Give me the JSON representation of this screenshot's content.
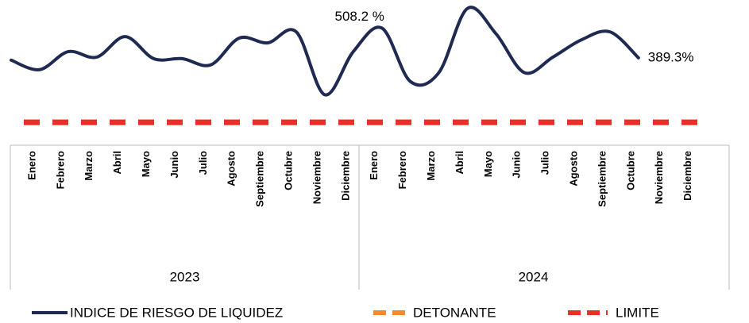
{
  "chart_data": {
    "type": "line",
    "categories": [
      "Enero",
      "Febrero",
      "Marzo",
      "Abril",
      "Mayo",
      "Junio",
      "Julio",
      "Agosto",
      "Septiembre",
      "Octubre",
      "Noviembre",
      "Diciembre",
      "Enero",
      "Febrero",
      "Marzo",
      "Abril",
      "Mayo",
      "Junio",
      "Julio",
      "Agosto",
      "Septiembre",
      "Octubre",
      "Noviembre",
      "Diciembre"
    ],
    "groups": [
      "2023",
      "2024"
    ],
    "series": [
      {
        "name": "INDICE DE RIESGO DE LIQUIDEZ",
        "color": "#1f2a52",
        "values": [
          380,
          342,
          414,
          392,
          474,
          386,
          386,
          361,
          468,
          449,
          493,
          242,
          414,
          508.2,
          295,
          330,
          586,
          486,
          330,
          392,
          461,
          493,
          389.3,
          null
        ],
        "value_labels": [
          null,
          null,
          null,
          null,
          null,
          null,
          null,
          null,
          null,
          null,
          null,
          null,
          null,
          "508.2 %",
          null,
          null,
          null,
          null,
          null,
          null,
          null,
          null,
          "389.3%",
          null
        ]
      },
      {
        "name": "DETONANTE",
        "color": "#f28a30",
        "values": [
          132,
          132,
          132,
          132,
          132,
          132,
          132,
          132,
          132,
          132,
          132,
          132,
          132,
          132,
          132,
          132,
          132,
          132,
          132,
          132,
          132,
          132,
          132,
          132
        ]
      },
      {
        "name": "LIMITE",
        "color": "#e8302a",
        "values": [
          132,
          132,
          132,
          132,
          132,
          132,
          132,
          132,
          132,
          132,
          132,
          132,
          132,
          132,
          132,
          132,
          132,
          132,
          132,
          132,
          132,
          132,
          132,
          132
        ]
      }
    ],
    "ylim": [
      50,
      620
    ]
  }
}
